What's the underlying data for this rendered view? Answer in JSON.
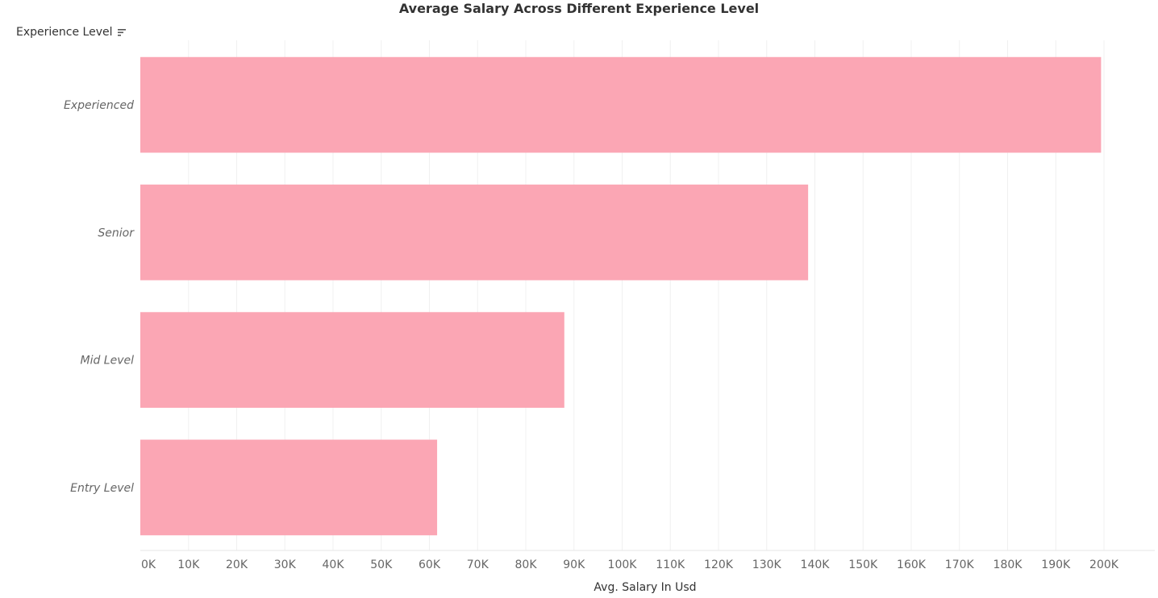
{
  "chart_data": {
    "type": "bar",
    "orientation": "horizontal",
    "title": "Average Salary Across Different Experience Level",
    "row_header": "Experience Level",
    "categories": [
      "Experienced",
      "Senior",
      "Mid Level",
      "Entry Level"
    ],
    "values": [
      199400,
      138600,
      88000,
      61600
    ],
    "xlabel": "Avg. Salary In Usd",
    "ylabel": "",
    "xlim": [
      0,
      200000
    ],
    "x_ticks": [
      0,
      10000,
      20000,
      30000,
      40000,
      50000,
      60000,
      70000,
      80000,
      90000,
      100000,
      110000,
      120000,
      130000,
      140000,
      150000,
      160000,
      170000,
      180000,
      190000,
      200000
    ],
    "x_tick_labels": [
      "0K",
      "10K",
      "20K",
      "30K",
      "40K",
      "50K",
      "60K",
      "70K",
      "80K",
      "90K",
      "100K",
      "110K",
      "120K",
      "130K",
      "140K",
      "150K",
      "160K",
      "170K",
      "180K",
      "190K",
      "200K"
    ],
    "bar_color": "#FBA6B4",
    "grid": true,
    "sort_icon": "sort-descending-icon"
  }
}
